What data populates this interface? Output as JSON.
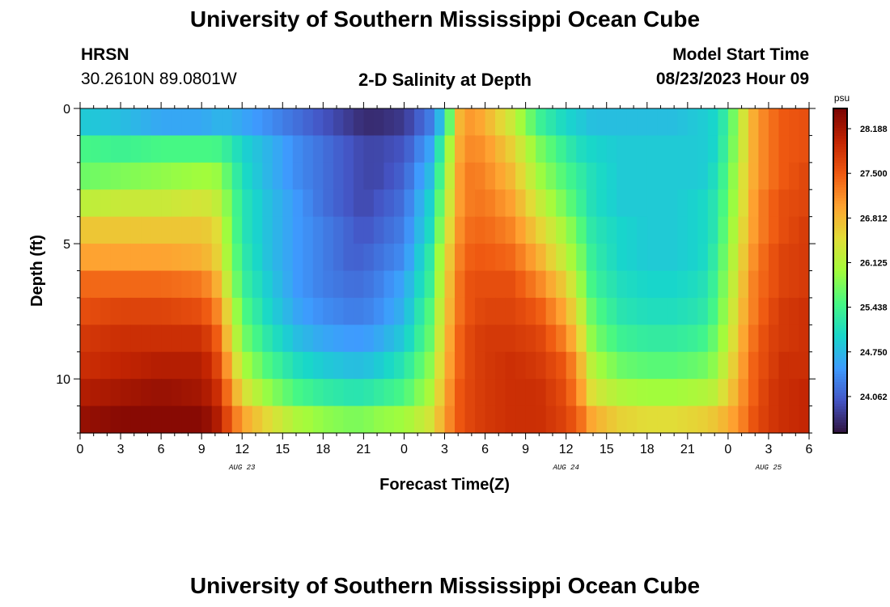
{
  "header": {
    "title": "University of Southern Mississippi Ocean Cube",
    "station": "HRSN",
    "coordinates": "30.2610N  89.0801W",
    "chart_title": "2-D Salinity at Depth",
    "model_label": "Model Start Time",
    "model_time": "08/23/2023 Hour 09"
  },
  "footer": {
    "title": "University of Southern Mississippi Ocean Cube"
  },
  "colors": {
    "background": "#ffffff",
    "axis": "#000000"
  },
  "chart_data": {
    "type": "heatmap",
    "title": "2-D Salinity at Depth",
    "xlabel": "Forecast Time(Z)",
    "ylabel": "Depth (ft)",
    "x_range_hours": [
      0,
      54
    ],
    "y_range_ft": [
      0,
      12
    ],
    "x_ticks": [
      {
        "hour": 0,
        "label": "0"
      },
      {
        "hour": 3,
        "label": "3"
      },
      {
        "hour": 6,
        "label": "6"
      },
      {
        "hour": 9,
        "label": "9"
      },
      {
        "hour": 12,
        "label": "12"
      },
      {
        "hour": 15,
        "label": "15"
      },
      {
        "hour": 18,
        "label": "18"
      },
      {
        "hour": 21,
        "label": "21"
      },
      {
        "hour": 24,
        "label": "0"
      },
      {
        "hour": 27,
        "label": "3"
      },
      {
        "hour": 30,
        "label": "6"
      },
      {
        "hour": 33,
        "label": "9"
      },
      {
        "hour": 36,
        "label": "12"
      },
      {
        "hour": 39,
        "label": "15"
      },
      {
        "hour": 42,
        "label": "18"
      },
      {
        "hour": 45,
        "label": "21"
      },
      {
        "hour": 48,
        "label": "0"
      },
      {
        "hour": 51,
        "label": "3"
      },
      {
        "hour": 54,
        "label": "6"
      }
    ],
    "date_labels": [
      {
        "hour": 12,
        "label": "AUG 23"
      },
      {
        "hour": 36,
        "label": "AUG 24"
      },
      {
        "hour": 51,
        "label": "AUG 25"
      }
    ],
    "y_ticks": [
      {
        "depth": 0,
        "label": "0"
      },
      {
        "depth": 5,
        "label": "5"
      },
      {
        "depth": 10,
        "label": "10"
      }
    ],
    "colorbar": {
      "unit": "psu",
      "min": 23.5,
      "max": 28.5,
      "ticks": [
        "28.188",
        "27.500",
        "26.812",
        "26.125",
        "25.438",
        "24.750",
        "24.062"
      ],
      "tick_values": [
        28.188,
        27.5,
        26.812,
        26.125,
        25.438,
        24.75,
        24.062
      ],
      "colormap": [
        "#30123b",
        "#4454c4",
        "#3e9bfe",
        "#18d6cb",
        "#46f884",
        "#a2fc3c",
        "#e1dd37",
        "#fea331",
        "#ef5911",
        "#c22402",
        "#7a0403"
      ]
    },
    "depth_layers_ft": [
      0.5,
      1.5,
      2.5,
      3.5,
      4.5,
      5.5,
      6.5,
      7.5,
      8.5,
      9.5,
      10.5,
      11.5
    ],
    "time_keys_hours": [
      0,
      3,
      6,
      9,
      10,
      11,
      12,
      14,
      16,
      18,
      20,
      21,
      22,
      24,
      26,
      27,
      28,
      29,
      30,
      32,
      34,
      36,
      37,
      38,
      40,
      42,
      44,
      46,
      47,
      48,
      49,
      50,
      51,
      52,
      54
    ],
    "salinity_psu": [
      [
        24.9,
        24.8,
        24.6,
        24.6,
        24.7,
        24.7,
        24.6,
        24.4,
        24.2,
        24.0,
        23.8,
        23.7,
        23.7,
        23.8,
        24.3,
        25.0,
        26.8,
        27.1,
        26.9,
        26.3,
        25.4,
        25.0,
        24.9,
        24.8,
        24.8,
        24.8,
        24.8,
        24.9,
        25.0,
        25.4,
        26.3,
        27.0,
        27.3,
        27.5,
        27.6
      ],
      [
        25.5,
        25.4,
        25.5,
        25.5,
        25.5,
        25.3,
        25.0,
        24.7,
        24.4,
        24.2,
        24.0,
        23.9,
        23.9,
        24.0,
        24.6,
        25.6,
        26.9,
        27.2,
        27.1,
        26.6,
        25.8,
        25.3,
        25.1,
        25.0,
        24.9,
        24.9,
        24.9,
        24.9,
        25.0,
        25.5,
        26.3,
        27.0,
        27.3,
        27.5,
        27.6
      ],
      [
        25.7,
        25.8,
        25.9,
        26.0,
        26.0,
        25.6,
        25.1,
        24.7,
        24.4,
        24.2,
        24.0,
        23.9,
        23.9,
        24.1,
        24.8,
        25.8,
        27.0,
        27.3,
        27.2,
        26.8,
        26.0,
        25.5,
        25.3,
        25.1,
        24.9,
        24.9,
        24.9,
        24.9,
        25.1,
        25.6,
        26.4,
        27.0,
        27.3,
        27.5,
        27.7
      ],
      [
        26.2,
        26.3,
        26.3,
        26.4,
        26.3,
        25.8,
        25.2,
        24.8,
        24.5,
        24.2,
        24.0,
        23.9,
        24.0,
        24.2,
        25.0,
        26.0,
        27.0,
        27.3,
        27.3,
        27.0,
        26.3,
        25.7,
        25.4,
        25.1,
        24.9,
        24.9,
        24.9,
        25.0,
        25.2,
        25.7,
        26.4,
        27.1,
        27.4,
        27.6,
        27.7
      ],
      [
        26.7,
        26.7,
        26.7,
        26.7,
        26.6,
        25.9,
        25.2,
        24.8,
        24.5,
        24.3,
        24.1,
        24.0,
        24.1,
        24.3,
        25.1,
        26.2,
        27.1,
        27.4,
        27.4,
        27.2,
        26.6,
        26.0,
        25.6,
        25.2,
        25.0,
        24.9,
        24.9,
        25.0,
        25.2,
        25.8,
        26.5,
        27.1,
        27.4,
        27.6,
        27.8
      ],
      [
        27.0,
        27.0,
        27.0,
        26.9,
        26.7,
        26.0,
        25.3,
        24.8,
        24.5,
        24.3,
        24.1,
        24.1,
        24.2,
        24.4,
        25.3,
        26.4,
        27.2,
        27.5,
        27.5,
        27.4,
        26.9,
        26.2,
        25.8,
        25.3,
        25.0,
        24.9,
        24.9,
        25.0,
        25.3,
        25.9,
        26.6,
        27.2,
        27.5,
        27.7,
        27.8
      ],
      [
        27.4,
        27.4,
        27.4,
        27.3,
        27.0,
        26.2,
        25.4,
        24.9,
        24.5,
        24.3,
        24.2,
        24.2,
        24.3,
        24.6,
        25.4,
        26.5,
        27.3,
        27.6,
        27.6,
        27.6,
        27.2,
        26.6,
        26.0,
        25.4,
        25.1,
        25.0,
        25.0,
        25.1,
        25.4,
        26.0,
        26.7,
        27.3,
        27.5,
        27.7,
        27.8
      ],
      [
        27.6,
        27.7,
        27.7,
        27.6,
        27.3,
        26.5,
        25.6,
        25.0,
        24.6,
        24.4,
        24.3,
        24.3,
        24.4,
        24.7,
        25.6,
        26.6,
        27.3,
        27.6,
        27.7,
        27.7,
        27.5,
        26.9,
        26.3,
        25.6,
        25.2,
        25.1,
        25.1,
        25.2,
        25.5,
        26.1,
        26.8,
        27.3,
        27.6,
        27.8,
        27.9
      ],
      [
        27.8,
        27.9,
        27.9,
        27.9,
        27.6,
        26.7,
        25.8,
        25.2,
        24.8,
        24.6,
        24.5,
        24.5,
        24.6,
        24.9,
        25.7,
        26.7,
        27.4,
        27.7,
        27.8,
        27.8,
        27.7,
        27.2,
        26.6,
        25.8,
        25.4,
        25.3,
        25.3,
        25.4,
        25.7,
        26.2,
        26.9,
        27.4,
        27.7,
        27.8,
        27.9
      ],
      [
        27.9,
        28.0,
        28.1,
        28.1,
        27.8,
        27.0,
        26.1,
        25.5,
        25.1,
        24.9,
        24.8,
        24.8,
        24.9,
        25.2,
        25.9,
        26.8,
        27.4,
        27.7,
        27.8,
        27.9,
        27.8,
        27.5,
        26.9,
        26.1,
        25.7,
        25.6,
        25.6,
        25.7,
        25.9,
        26.4,
        27.0,
        27.5,
        27.7,
        27.9,
        27.9
      ],
      [
        28.1,
        28.2,
        28.3,
        28.2,
        28.0,
        27.3,
        26.5,
        25.9,
        25.5,
        25.3,
        25.2,
        25.2,
        25.3,
        25.5,
        26.1,
        26.9,
        27.5,
        27.7,
        27.8,
        27.9,
        27.9,
        27.6,
        27.1,
        26.4,
        26.1,
        26.0,
        26.0,
        26.1,
        26.2,
        26.6,
        27.1,
        27.5,
        27.8,
        27.9,
        28.0
      ],
      [
        28.3,
        28.4,
        28.4,
        28.4,
        28.2,
        27.6,
        27.0,
        26.5,
        26.1,
        25.9,
        25.8,
        25.8,
        25.9,
        26.0,
        26.4,
        27.0,
        27.5,
        27.7,
        27.8,
        27.9,
        27.9,
        27.7,
        27.4,
        26.9,
        26.6,
        26.5,
        26.5,
        26.6,
        26.7,
        26.9,
        27.2,
        27.6,
        27.8,
        27.9,
        28.0
      ]
    ]
  }
}
